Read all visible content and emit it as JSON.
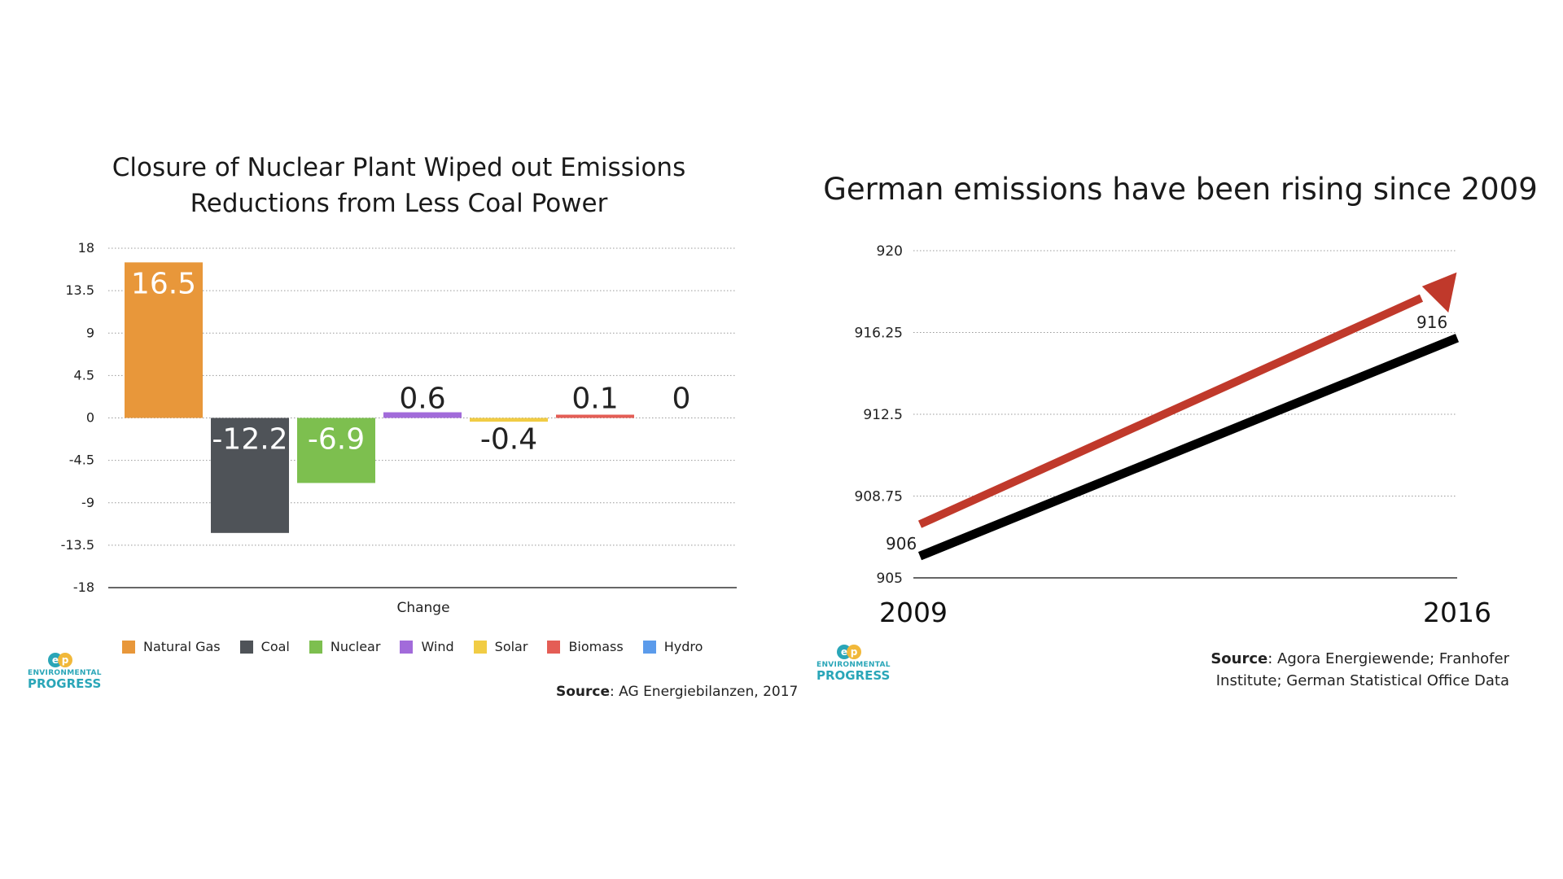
{
  "chart_data": [
    {
      "type": "bar",
      "title_line1": "Closure of Nuclear Plant Wiped out Emissions",
      "title_line2": "Reductions from Less Coal Power",
      "xlabel": "Change",
      "ylim": [
        -18,
        18
      ],
      "yticks": [
        "18",
        "13.5",
        "9",
        "4.5",
        "0",
        "-4.5",
        "-9",
        "-13.5",
        "-18"
      ],
      "grid": true,
      "legend_position": "bottom",
      "series": [
        {
          "name": "Natural Gas",
          "value": 16.5,
          "label": "16.5",
          "color": "#E8973A"
        },
        {
          "name": "Coal",
          "value": -12.2,
          "label": "-12.2",
          "color": "#4F5358"
        },
        {
          "name": "Nuclear",
          "value": -6.9,
          "label": "-6.9",
          "color": "#7DBF4F"
        },
        {
          "name": "Wind",
          "value": 0.6,
          "label": "0.6",
          "color": "#A26BDA"
        },
        {
          "name": "Solar",
          "value": -0.4,
          "label": "-0.4",
          "color": "#F1CC44"
        },
        {
          "name": "Biomass",
          "value": 0.1,
          "label": "0.1",
          "color": "#E45D55"
        },
        {
          "name": "Hydro",
          "value": 0,
          "label": "0",
          "color": "#5B9BEB"
        }
      ],
      "source_label": "Source",
      "source_text": ": AG Energiebilanzen, 2017"
    },
    {
      "type": "line",
      "title": "German emissions have been rising since 2009",
      "x": [
        "2009",
        "2016"
      ],
      "values": [
        906,
        916
      ],
      "point_labels": [
        "906",
        "916"
      ],
      "ylim": [
        905,
        920
      ],
      "yticks": [
        "920",
        "916.25",
        "912.5",
        "908.75",
        "905"
      ],
      "grid": true,
      "line_color": "#000000",
      "arrow_color": "#C0392B",
      "source_label": "Source",
      "source_text_line1": ": Agora Energiewende; Franhofer",
      "source_text_line2": "Institute; German Statistical Office Data"
    }
  ],
  "logos": [
    {
      "word1": "ENVIRONMENTAL",
      "word2": "PROGRESS"
    },
    {
      "word1": "ENVIRONMENTAL",
      "word2": "PROGRESS"
    }
  ]
}
